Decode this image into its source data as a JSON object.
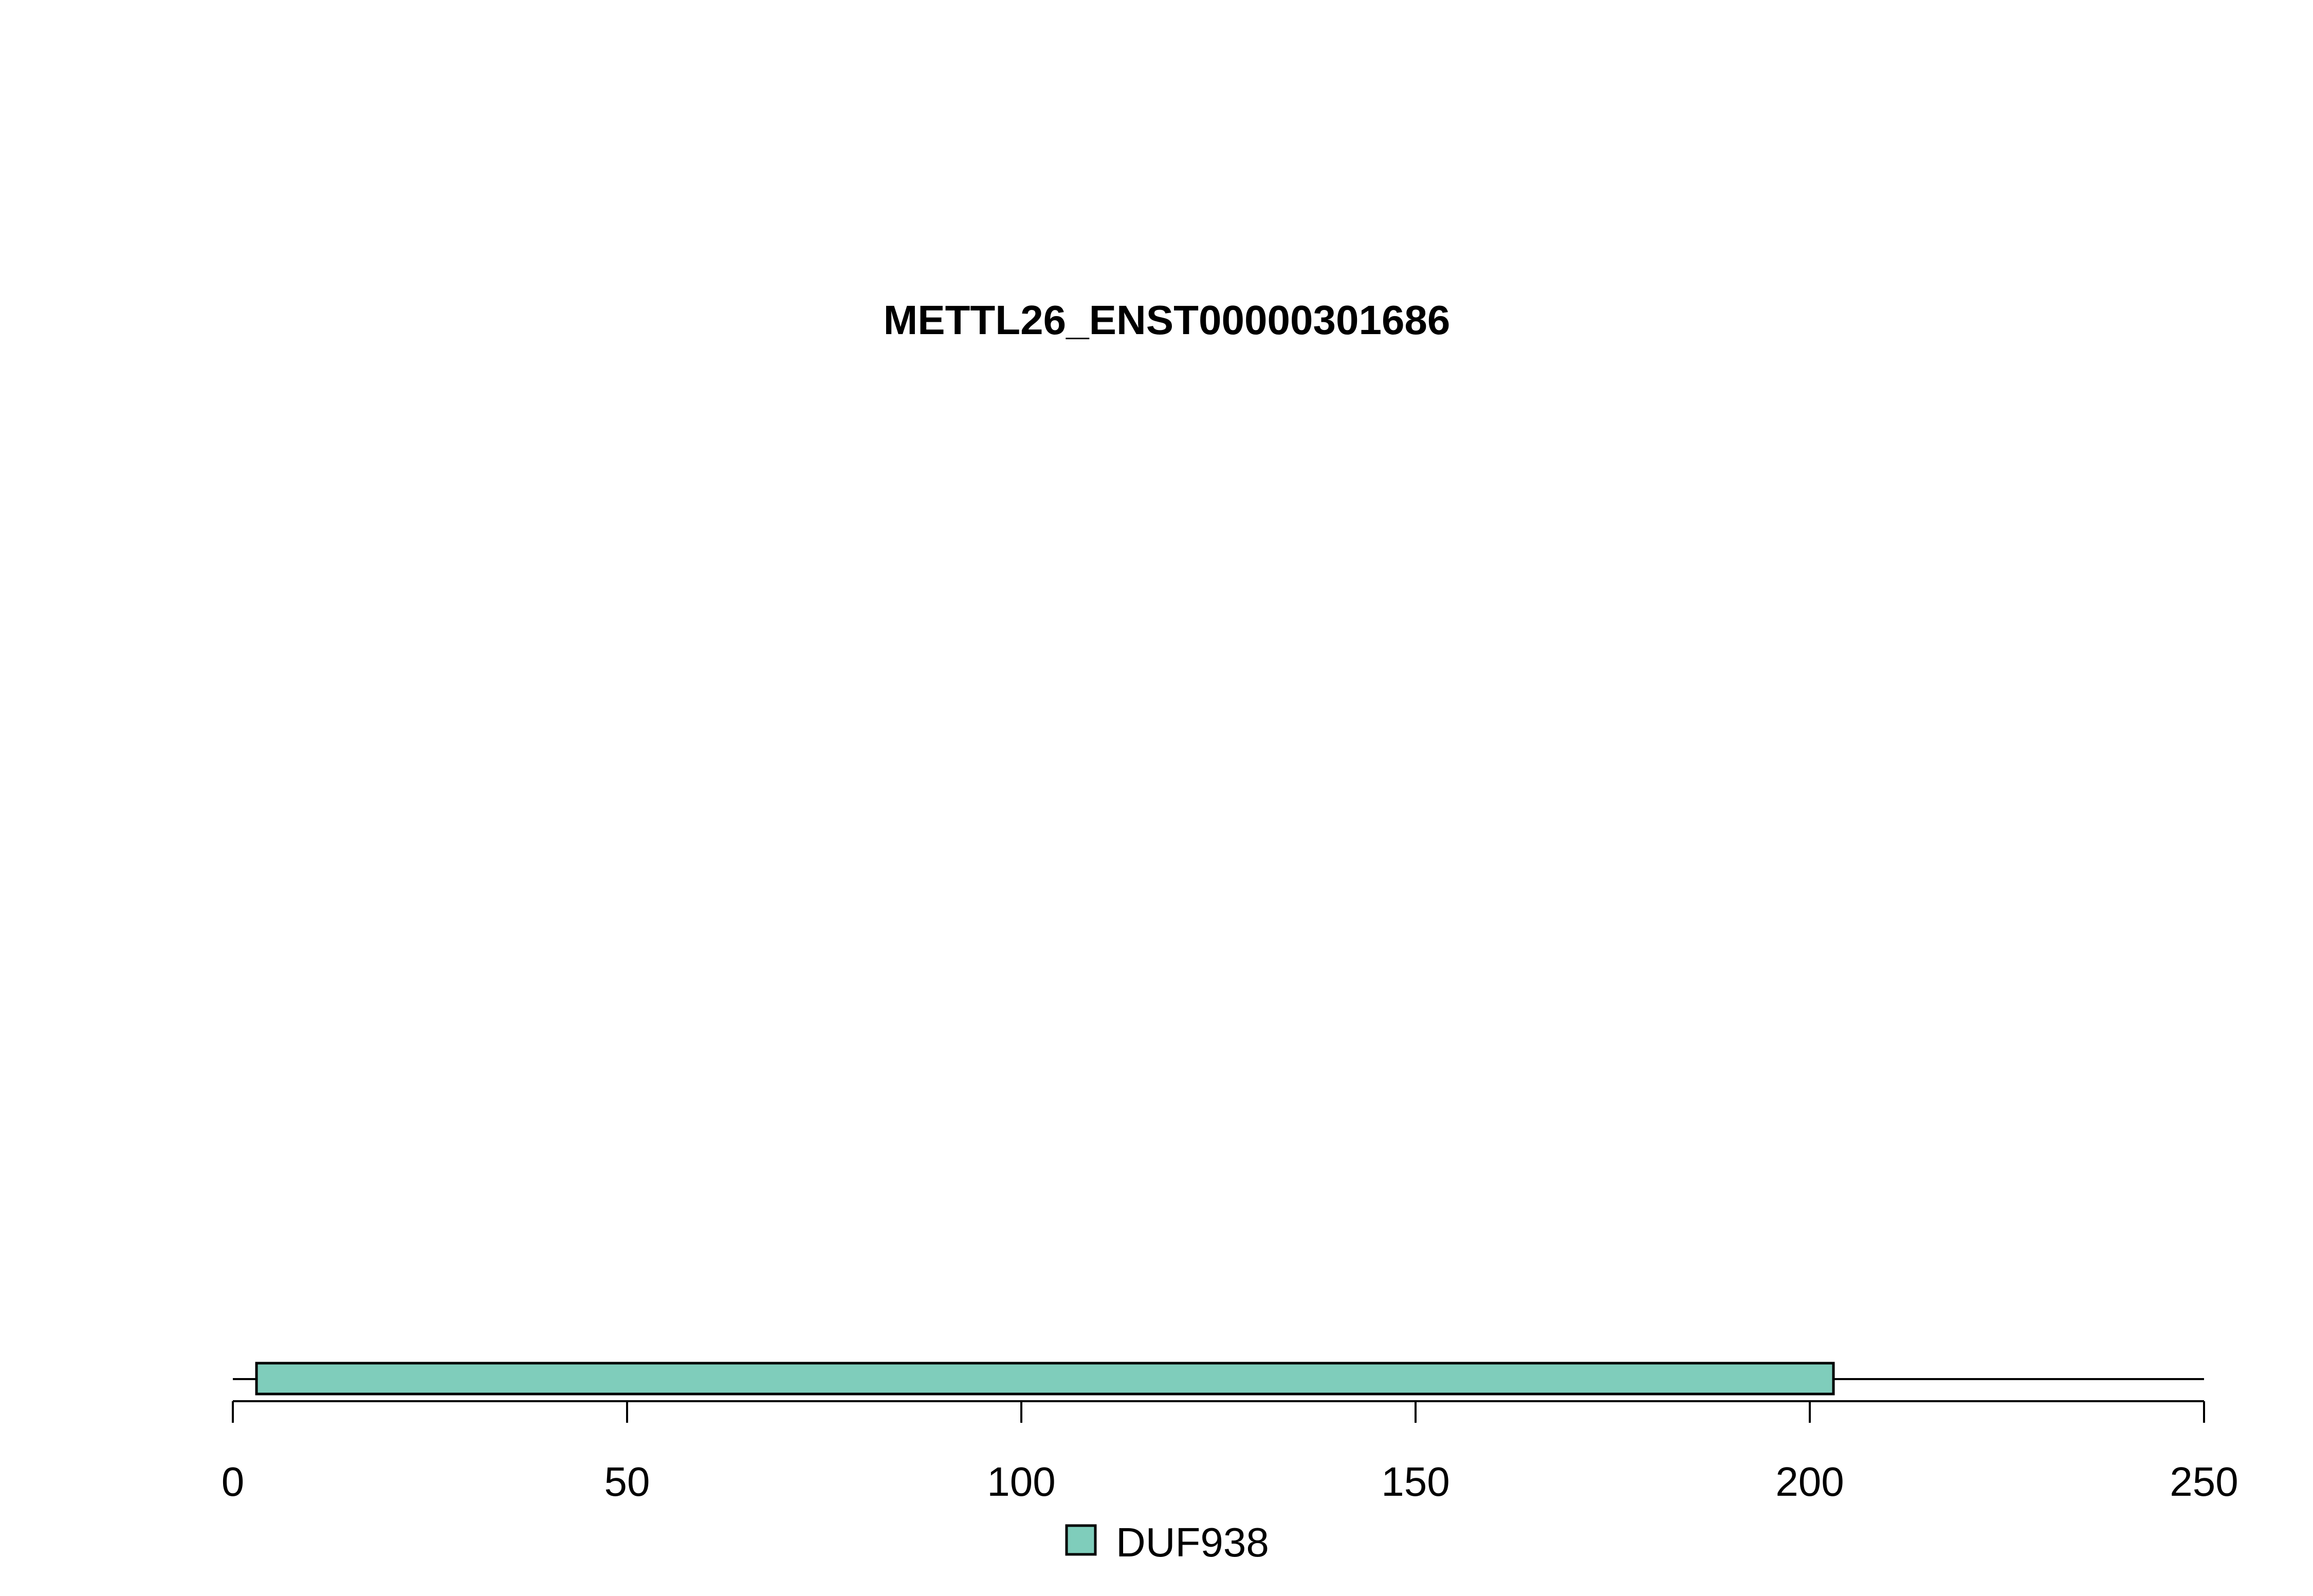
{
  "chart_data": {
    "type": "bar",
    "title": "METTL26_ENST00000301686",
    "xlabel": "",
    "ylabel": "",
    "xlim": [
      0,
      250
    ],
    "protein_length": 250,
    "ticks": [
      0,
      50,
      100,
      150,
      200,
      250
    ],
    "tick_labels": [
      "0",
      "50",
      "100",
      "150",
      "200",
      "250"
    ],
    "domains": [
      {
        "name": "DUF938",
        "start": 3,
        "end": 203,
        "color": "#7FCDBB"
      }
    ],
    "legend": {
      "placement": "bottom-center",
      "entries": [
        {
          "label": "DUF938",
          "color": "#7FCDBB"
        }
      ]
    },
    "grid": false
  }
}
